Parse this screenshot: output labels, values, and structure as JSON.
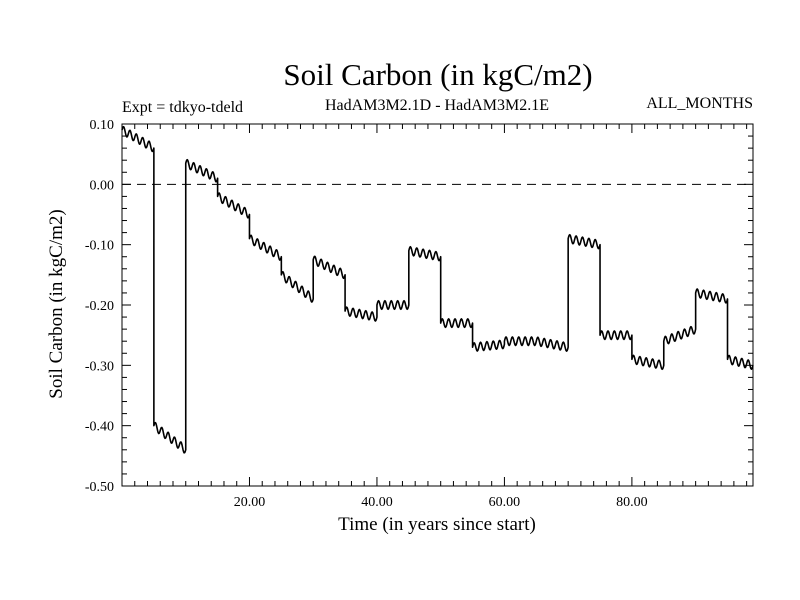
{
  "chart_data": {
    "type": "line",
    "title": "Soil Carbon (in kgC/m2)",
    "subtitle_left": "Expt = tdkyo-tdeld",
    "subtitle_center": "HadAM3M2.1D - HadAM3M2.1E",
    "subtitle_right": "ALL_MONTHS",
    "xlabel": "Time (in years since start)",
    "ylabel": "Soil Carbon (in kgC/m2)",
    "xlim": [
      0,
      99
    ],
    "ylim": [
      -0.5,
      0.1
    ],
    "x_ticks": [
      20,
      40,
      60,
      80
    ],
    "x_tick_labels": [
      "20.00",
      "40.00",
      "60.00",
      "80.00"
    ],
    "y_ticks": [
      0.1,
      0.0,
      -0.1,
      -0.2,
      -0.3,
      -0.4,
      -0.5
    ],
    "y_tick_labels": [
      "0.10",
      "0.00",
      "-0.10",
      "-0.20",
      "-0.30",
      "-0.40",
      "-0.50"
    ],
    "reference_line": {
      "y": 0.0,
      "style": "dashed"
    },
    "grid": false,
    "line_color": "#000000",
    "seasonal_cycle_amplitude": 0.007,
    "series": [
      {
        "points": [
          [
            0,
            0.09
          ],
          [
            5,
            0.06
          ],
          [
            5,
            -0.4
          ],
          [
            10,
            -0.44
          ],
          [
            10,
            0.035
          ],
          [
            15,
            0.01
          ],
          [
            15,
            -0.02
          ],
          [
            20,
            -0.05
          ],
          [
            20,
            -0.09
          ],
          [
            25,
            -0.12
          ],
          [
            25,
            -0.15
          ],
          [
            30,
            -0.19
          ],
          [
            30,
            -0.125
          ],
          [
            35,
            -0.15
          ],
          [
            35,
            -0.21
          ],
          [
            40,
            -0.22
          ],
          [
            40,
            -0.2
          ],
          [
            45,
            -0.2
          ],
          [
            45,
            -0.11
          ],
          [
            50,
            -0.12
          ],
          [
            50,
            -0.23
          ],
          [
            55,
            -0.23
          ],
          [
            55,
            -0.27
          ],
          [
            60,
            -0.265
          ],
          [
            60,
            -0.26
          ],
          [
            65,
            -0.26
          ],
          [
            65,
            -0.26
          ],
          [
            70,
            -0.27
          ],
          [
            70,
            -0.09
          ],
          [
            75,
            -0.1
          ],
          [
            75,
            -0.25
          ],
          [
            80,
            -0.25
          ],
          [
            80,
            -0.29
          ],
          [
            85,
            -0.3
          ],
          [
            85,
            -0.26
          ],
          [
            90,
            -0.24
          ],
          [
            90,
            -0.18
          ],
          [
            95,
            -0.19
          ],
          [
            95,
            -0.29
          ],
          [
            99,
            -0.3
          ]
        ]
      }
    ]
  }
}
